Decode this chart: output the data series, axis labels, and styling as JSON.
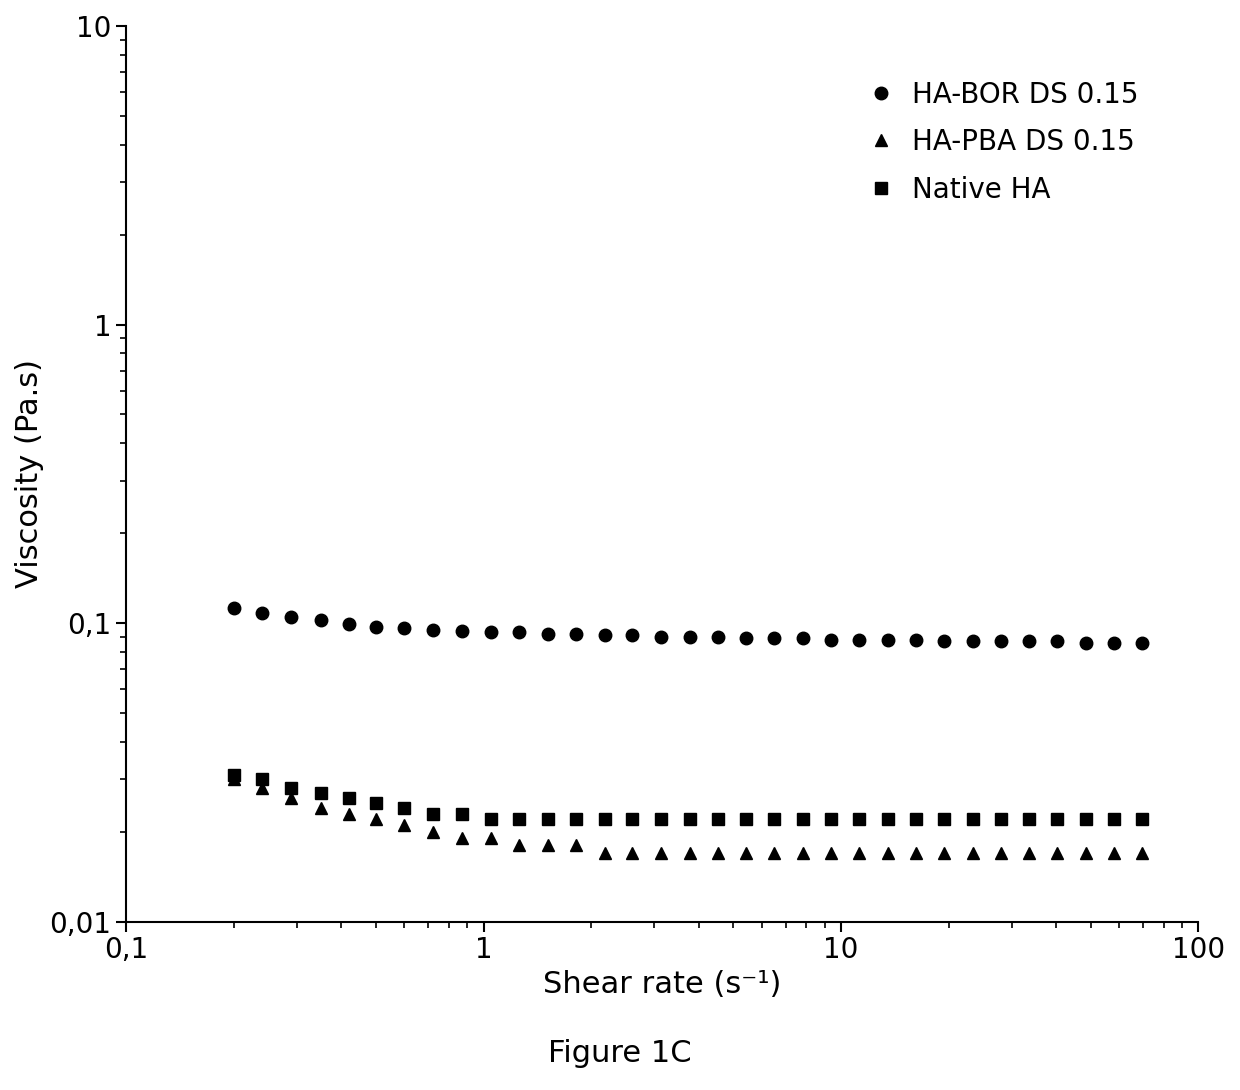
{
  "title": "Figure 1C",
  "xlabel": "Shear rate (s⁻¹)",
  "ylabel": "Viscosity (Pa.s)",
  "xlim": [
    0.1,
    100
  ],
  "ylim": [
    0.01,
    10
  ],
  "background_color": "#ffffff",
  "legend_labels": [
    "HA-BOR DS 0.15",
    "HA-PBA DS 0.15",
    "Native HA"
  ],
  "series": {
    "HA_BOR": {
      "x": [
        0.2,
        0.24,
        0.29,
        0.35,
        0.42,
        0.5,
        0.6,
        0.72,
        0.87,
        1.05,
        1.26,
        1.51,
        1.81,
        2.18,
        2.61,
        3.14,
        3.77,
        4.52,
        5.42,
        6.51,
        7.81,
        9.37,
        11.25,
        13.5,
        16.2,
        19.44,
        23.33,
        27.99,
        33.59,
        40.31,
        48.37,
        58.05,
        69.66
      ],
      "y": [
        0.112,
        0.108,
        0.105,
        0.102,
        0.099,
        0.097,
        0.096,
        0.095,
        0.094,
        0.093,
        0.093,
        0.092,
        0.092,
        0.091,
        0.091,
        0.09,
        0.09,
        0.09,
        0.089,
        0.089,
        0.089,
        0.088,
        0.088,
        0.088,
        0.088,
        0.087,
        0.087,
        0.087,
        0.087,
        0.087,
        0.086,
        0.086,
        0.086
      ],
      "marker": "o",
      "color": "#000000",
      "markersize": 9
    },
    "HA_PBA": {
      "x": [
        0.2,
        0.24,
        0.29,
        0.35,
        0.42,
        0.5,
        0.6,
        0.72,
        0.87,
        1.05,
        1.26,
        1.51,
        1.81,
        2.18,
        2.61,
        3.14,
        3.77,
        4.52,
        5.42,
        6.51,
        7.81,
        9.37,
        11.25,
        13.5,
        16.2,
        19.44,
        23.33,
        27.99,
        33.59,
        40.31,
        48.37,
        58.05,
        69.66
      ],
      "y": [
        0.03,
        0.028,
        0.026,
        0.024,
        0.023,
        0.022,
        0.021,
        0.02,
        0.019,
        0.019,
        0.018,
        0.018,
        0.018,
        0.017,
        0.017,
        0.017,
        0.017,
        0.017,
        0.017,
        0.017,
        0.017,
        0.017,
        0.017,
        0.017,
        0.017,
        0.017,
        0.017,
        0.017,
        0.017,
        0.017,
        0.017,
        0.017,
        0.017
      ],
      "marker": "^",
      "color": "#000000",
      "markersize": 9
    },
    "Native_HA": {
      "x": [
        0.2,
        0.24,
        0.29,
        0.35,
        0.42,
        0.5,
        0.6,
        0.72,
        0.87,
        1.05,
        1.26,
        1.51,
        1.81,
        2.18,
        2.61,
        3.14,
        3.77,
        4.52,
        5.42,
        6.51,
        7.81,
        9.37,
        11.25,
        13.5,
        16.2,
        19.44,
        23.33,
        27.99,
        33.59,
        40.31,
        48.37,
        58.05,
        69.66
      ],
      "y": [
        0.031,
        0.03,
        0.028,
        0.027,
        0.026,
        0.025,
        0.024,
        0.023,
        0.023,
        0.022,
        0.022,
        0.022,
        0.022,
        0.022,
        0.022,
        0.022,
        0.022,
        0.022,
        0.022,
        0.022,
        0.022,
        0.022,
        0.022,
        0.022,
        0.022,
        0.022,
        0.022,
        0.022,
        0.022,
        0.022,
        0.022,
        0.022,
        0.022
      ],
      "marker": "s",
      "color": "#000000",
      "markersize": 9
    }
  },
  "tick_label_fontsize": 20,
  "axis_label_fontsize": 22,
  "legend_fontsize": 20,
  "title_fontsize": 22,
  "y_tick_labels": [
    "0,01",
    "0,1",
    "1",
    "10"
  ],
  "y_tick_values": [
    0.01,
    0.1,
    1,
    10
  ],
  "x_tick_labels": [
    "0,1",
    "1",
    "10",
    "100"
  ],
  "x_tick_values": [
    0.1,
    1,
    10,
    100
  ]
}
